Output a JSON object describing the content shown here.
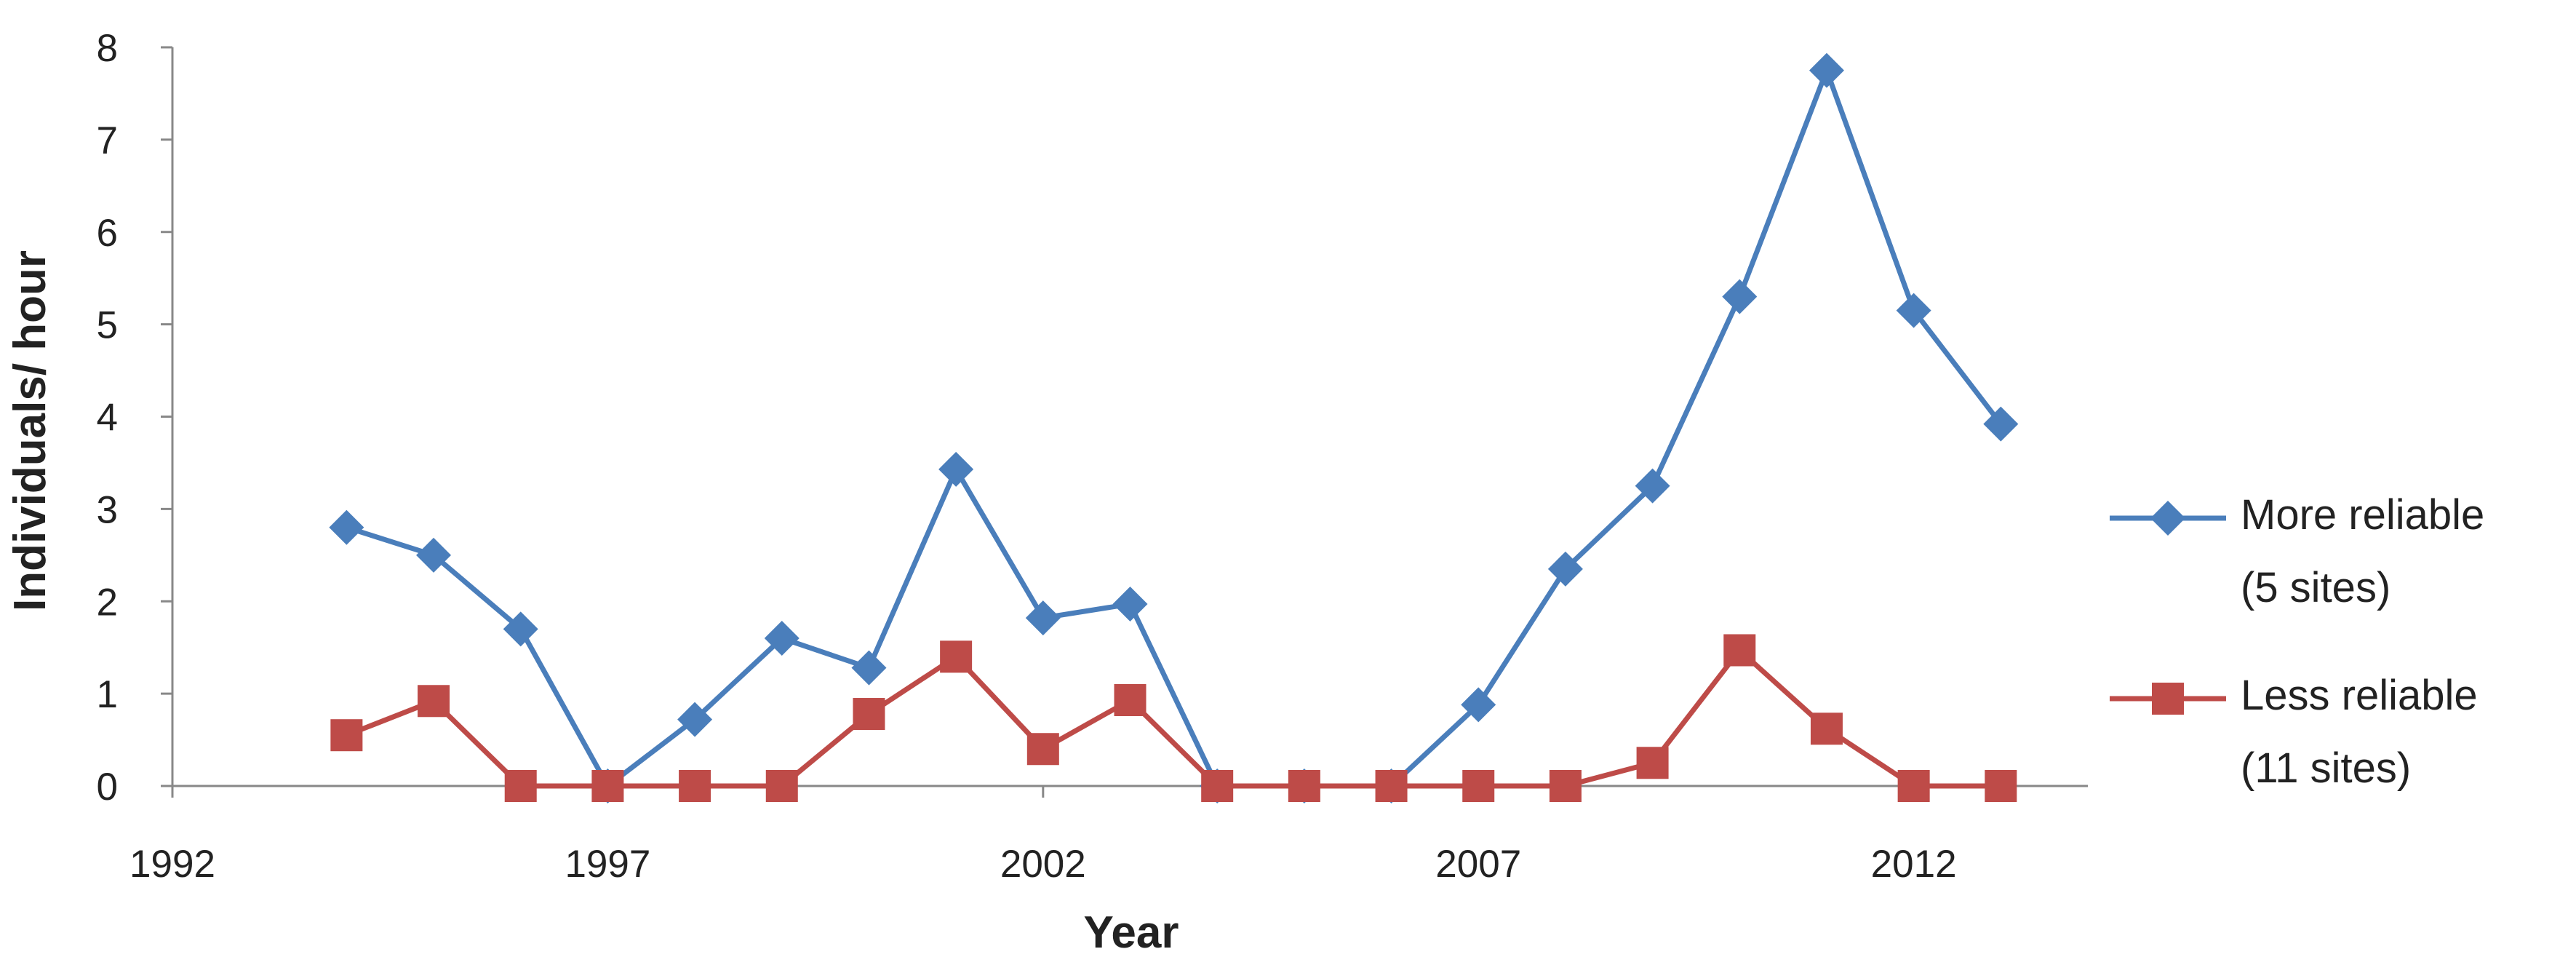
{
  "chart_data": {
    "type": "line",
    "xlabel": "Year",
    "ylabel": "Individuals/ hour",
    "xlim": [
      1992,
      2014
    ],
    "ylim": [
      0,
      8
    ],
    "xticks": [
      1992,
      1997,
      2002,
      2007,
      2012
    ],
    "yticks": [
      0,
      1,
      2,
      3,
      4,
      5,
      6,
      7,
      8
    ],
    "grid": false,
    "legend_position": "right",
    "series": [
      {
        "name": "More reliable (5 sites)",
        "legend_lines": [
          "More reliable",
          "(5 sites)"
        ],
        "color": "#4a7ebb",
        "marker": "diamond",
        "x": [
          1994,
          1995,
          1996,
          1997,
          1998,
          1999,
          2000,
          2001,
          2002,
          2003,
          2004,
          2005,
          2006,
          2007,
          2008,
          2009,
          2010,
          2011,
          2012,
          2013
        ],
        "y": [
          2.8,
          2.5,
          1.7,
          0,
          0.72,
          1.6,
          1.28,
          3.43,
          1.82,
          1.97,
          0,
          0,
          0,
          0.88,
          2.35,
          3.25,
          5.3,
          7.75,
          5.15,
          3.92
        ]
      },
      {
        "name": "Less reliable (11 sites)",
        "legend_lines": [
          "Less reliable",
          "(11 sites)"
        ],
        "color": "#be4b48",
        "marker": "square",
        "x": [
          1994,
          1995,
          1996,
          1997,
          1998,
          1999,
          2000,
          2001,
          2002,
          2003,
          2004,
          2005,
          2006,
          2007,
          2008,
          2009,
          2010,
          2011,
          2012,
          2013
        ],
        "y": [
          0.55,
          0.92,
          0,
          0,
          0,
          0,
          0.78,
          1.4,
          0.4,
          0.93,
          0,
          0,
          0,
          0,
          0,
          0.25,
          1.47,
          0.62,
          0,
          0
        ]
      }
    ]
  }
}
